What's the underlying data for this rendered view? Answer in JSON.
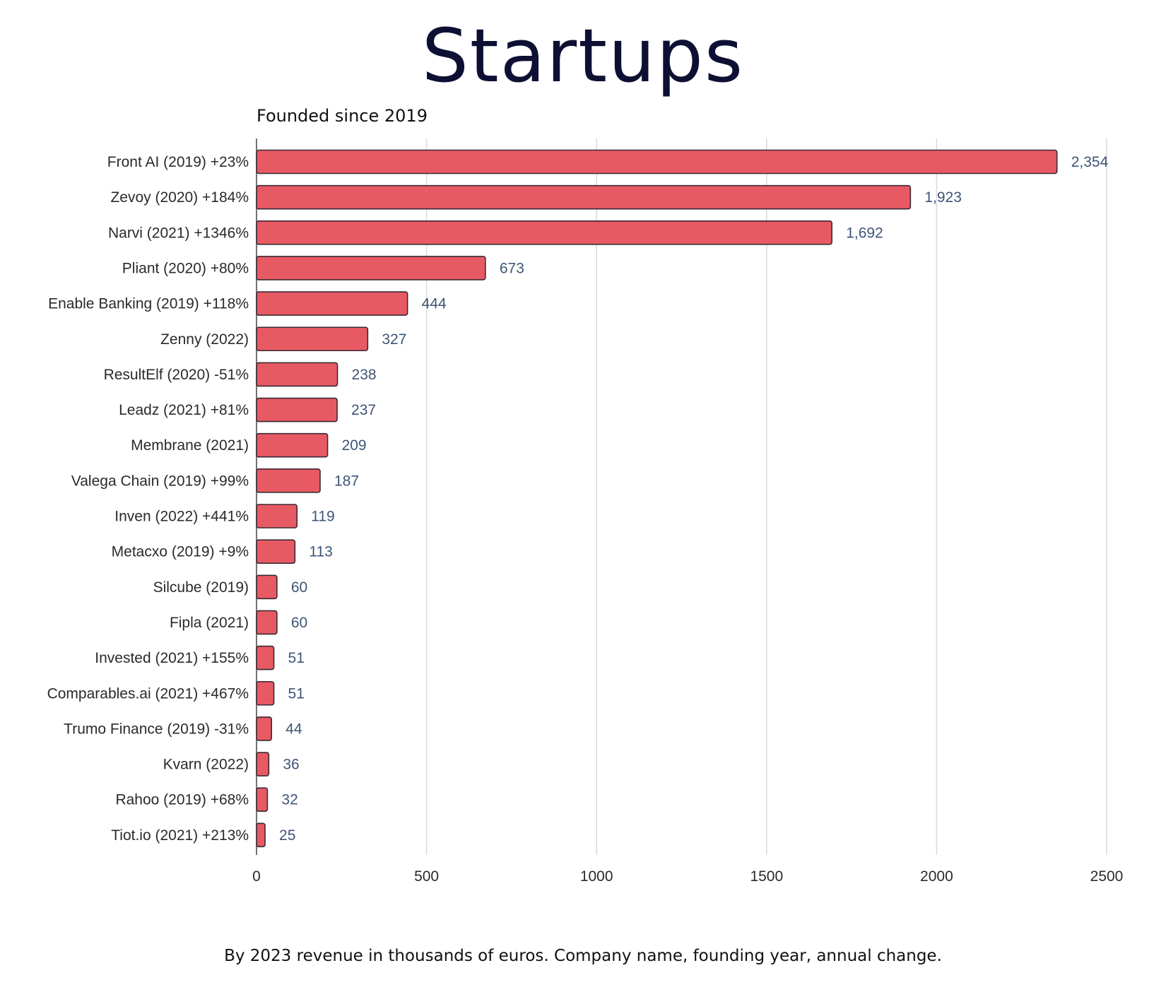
{
  "title": "Startups",
  "subtitle": "Founded since 2019",
  "footnote": "By 2023 revenue in thousands of euros. Company name, founding year, annual change.",
  "colors": {
    "bar_fill": "#e85a63",
    "bar_stroke": "#3a2a35",
    "grid": "#d9d9d9",
    "axis": "#444444",
    "value_text": "#3e5577",
    "title_text": "#0d1033"
  },
  "chart_data": {
    "type": "bar",
    "orientation": "horizontal",
    "categories": [
      "Front AI (2019) +23%",
      "Zevoy (2020) +184%",
      "Narvi (2021) +1346%",
      "Pliant (2020) +80%",
      "Enable Banking (2019) +118%",
      "Zenny (2022)",
      "ResultElf (2020) -51%",
      "Leadz (2021) +81%",
      "Membrane (2021)",
      "Valega Chain (2019) +99%",
      "Inven (2022) +441%",
      "Metacxo (2019) +9%",
      "Silcube (2019)",
      "Fipla (2021)",
      "Invested (2021) +155%",
      "Comparables.ai (2021) +467%",
      "Trumo Finance (2019) -31%",
      "Kvarn (2022)",
      "Rahoo (2019) +68%",
      "Tiot.io (2021) +213%"
    ],
    "values": [
      2354,
      1923,
      1692,
      673,
      444,
      327,
      238,
      237,
      209,
      187,
      119,
      113,
      60,
      60,
      51,
      51,
      44,
      36,
      32,
      25
    ],
    "value_labels": [
      "2,354",
      "1,923",
      "1,692",
      "673",
      "444",
      "327",
      "238",
      "237",
      "209",
      "187",
      "119",
      "113",
      "60",
      "60",
      "51",
      "51",
      "44",
      "36",
      "32",
      "25"
    ],
    "xlim": [
      0,
      2500
    ],
    "xticks": [
      0,
      500,
      1000,
      1500,
      2000,
      2500
    ],
    "xtick_labels": [
      "0",
      "500",
      "1000",
      "1500",
      "2000",
      "2500"
    ],
    "xlabel": "",
    "ylabel": "",
    "grid": "vertical",
    "legend": "none"
  }
}
